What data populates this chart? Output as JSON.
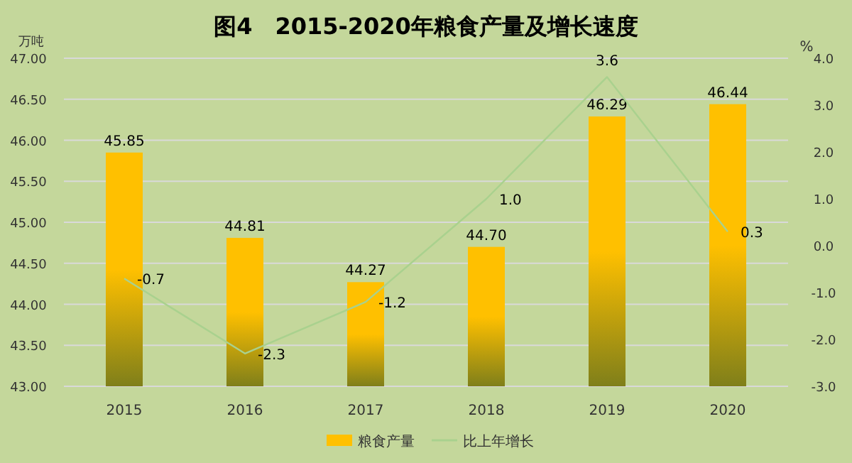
{
  "chart_data": {
    "type": "bar",
    "title": "图4　2015-2020年粮食产量及增长速度",
    "ylabel": "万吨",
    "y2label": "%",
    "categories": [
      "2015",
      "2016",
      "2017",
      "2018",
      "2019",
      "2020"
    ],
    "series": [
      {
        "name": "粮食产量",
        "color": "#ffc000",
        "values": [
          45.85,
          44.81,
          44.27,
          44.7,
          46.29,
          46.44
        ],
        "value_labels": [
          "45.85",
          "44.81",
          "44.27",
          "44.70",
          "46.29",
          "46.44"
        ]
      },
      {
        "name": "比上年增长",
        "type": "line",
        "axis": "y2",
        "color": "#a9d18e",
        "values": [
          -0.7,
          -2.3,
          -1.2,
          1,
          3.6,
          0.3
        ],
        "value_labels": [
          "-0.7",
          "-2.3",
          "-1.2",
          "1.0",
          "3.6",
          "0.3"
        ]
      }
    ],
    "ylim": [
      43,
      47
    ],
    "yticks": [
      {
        "value": 43,
        "label": "43.00"
      },
      {
        "value": 43.5,
        "label": "43.50"
      },
      {
        "value": 44,
        "label": "44.00"
      },
      {
        "value": 44.5,
        "label": "44.50"
      },
      {
        "value": 45,
        "label": "45.00"
      },
      {
        "value": 45.5,
        "label": "45.50"
      },
      {
        "value": 46,
        "label": "46.00"
      },
      {
        "value": 46.5,
        "label": "46.50"
      },
      {
        "value": 47,
        "label": "47.00"
      }
    ],
    "y2lim": [
      -3,
      4
    ],
    "y2ticks": [
      {
        "value": -3,
        "label": "-3.0"
      },
      {
        "value": -2,
        "label": "-2.0"
      },
      {
        "value": -1,
        "label": "-1.0"
      },
      {
        "value": 0,
        "label": "0.0"
      },
      {
        "value": 1,
        "label": "1.0"
      },
      {
        "value": 2,
        "label": "2.0"
      },
      {
        "value": 3,
        "label": "3.0"
      },
      {
        "value": 4,
        "label": "4.0"
      }
    ],
    "grid": "y",
    "legend": "bottom",
    "marker": "none"
  }
}
